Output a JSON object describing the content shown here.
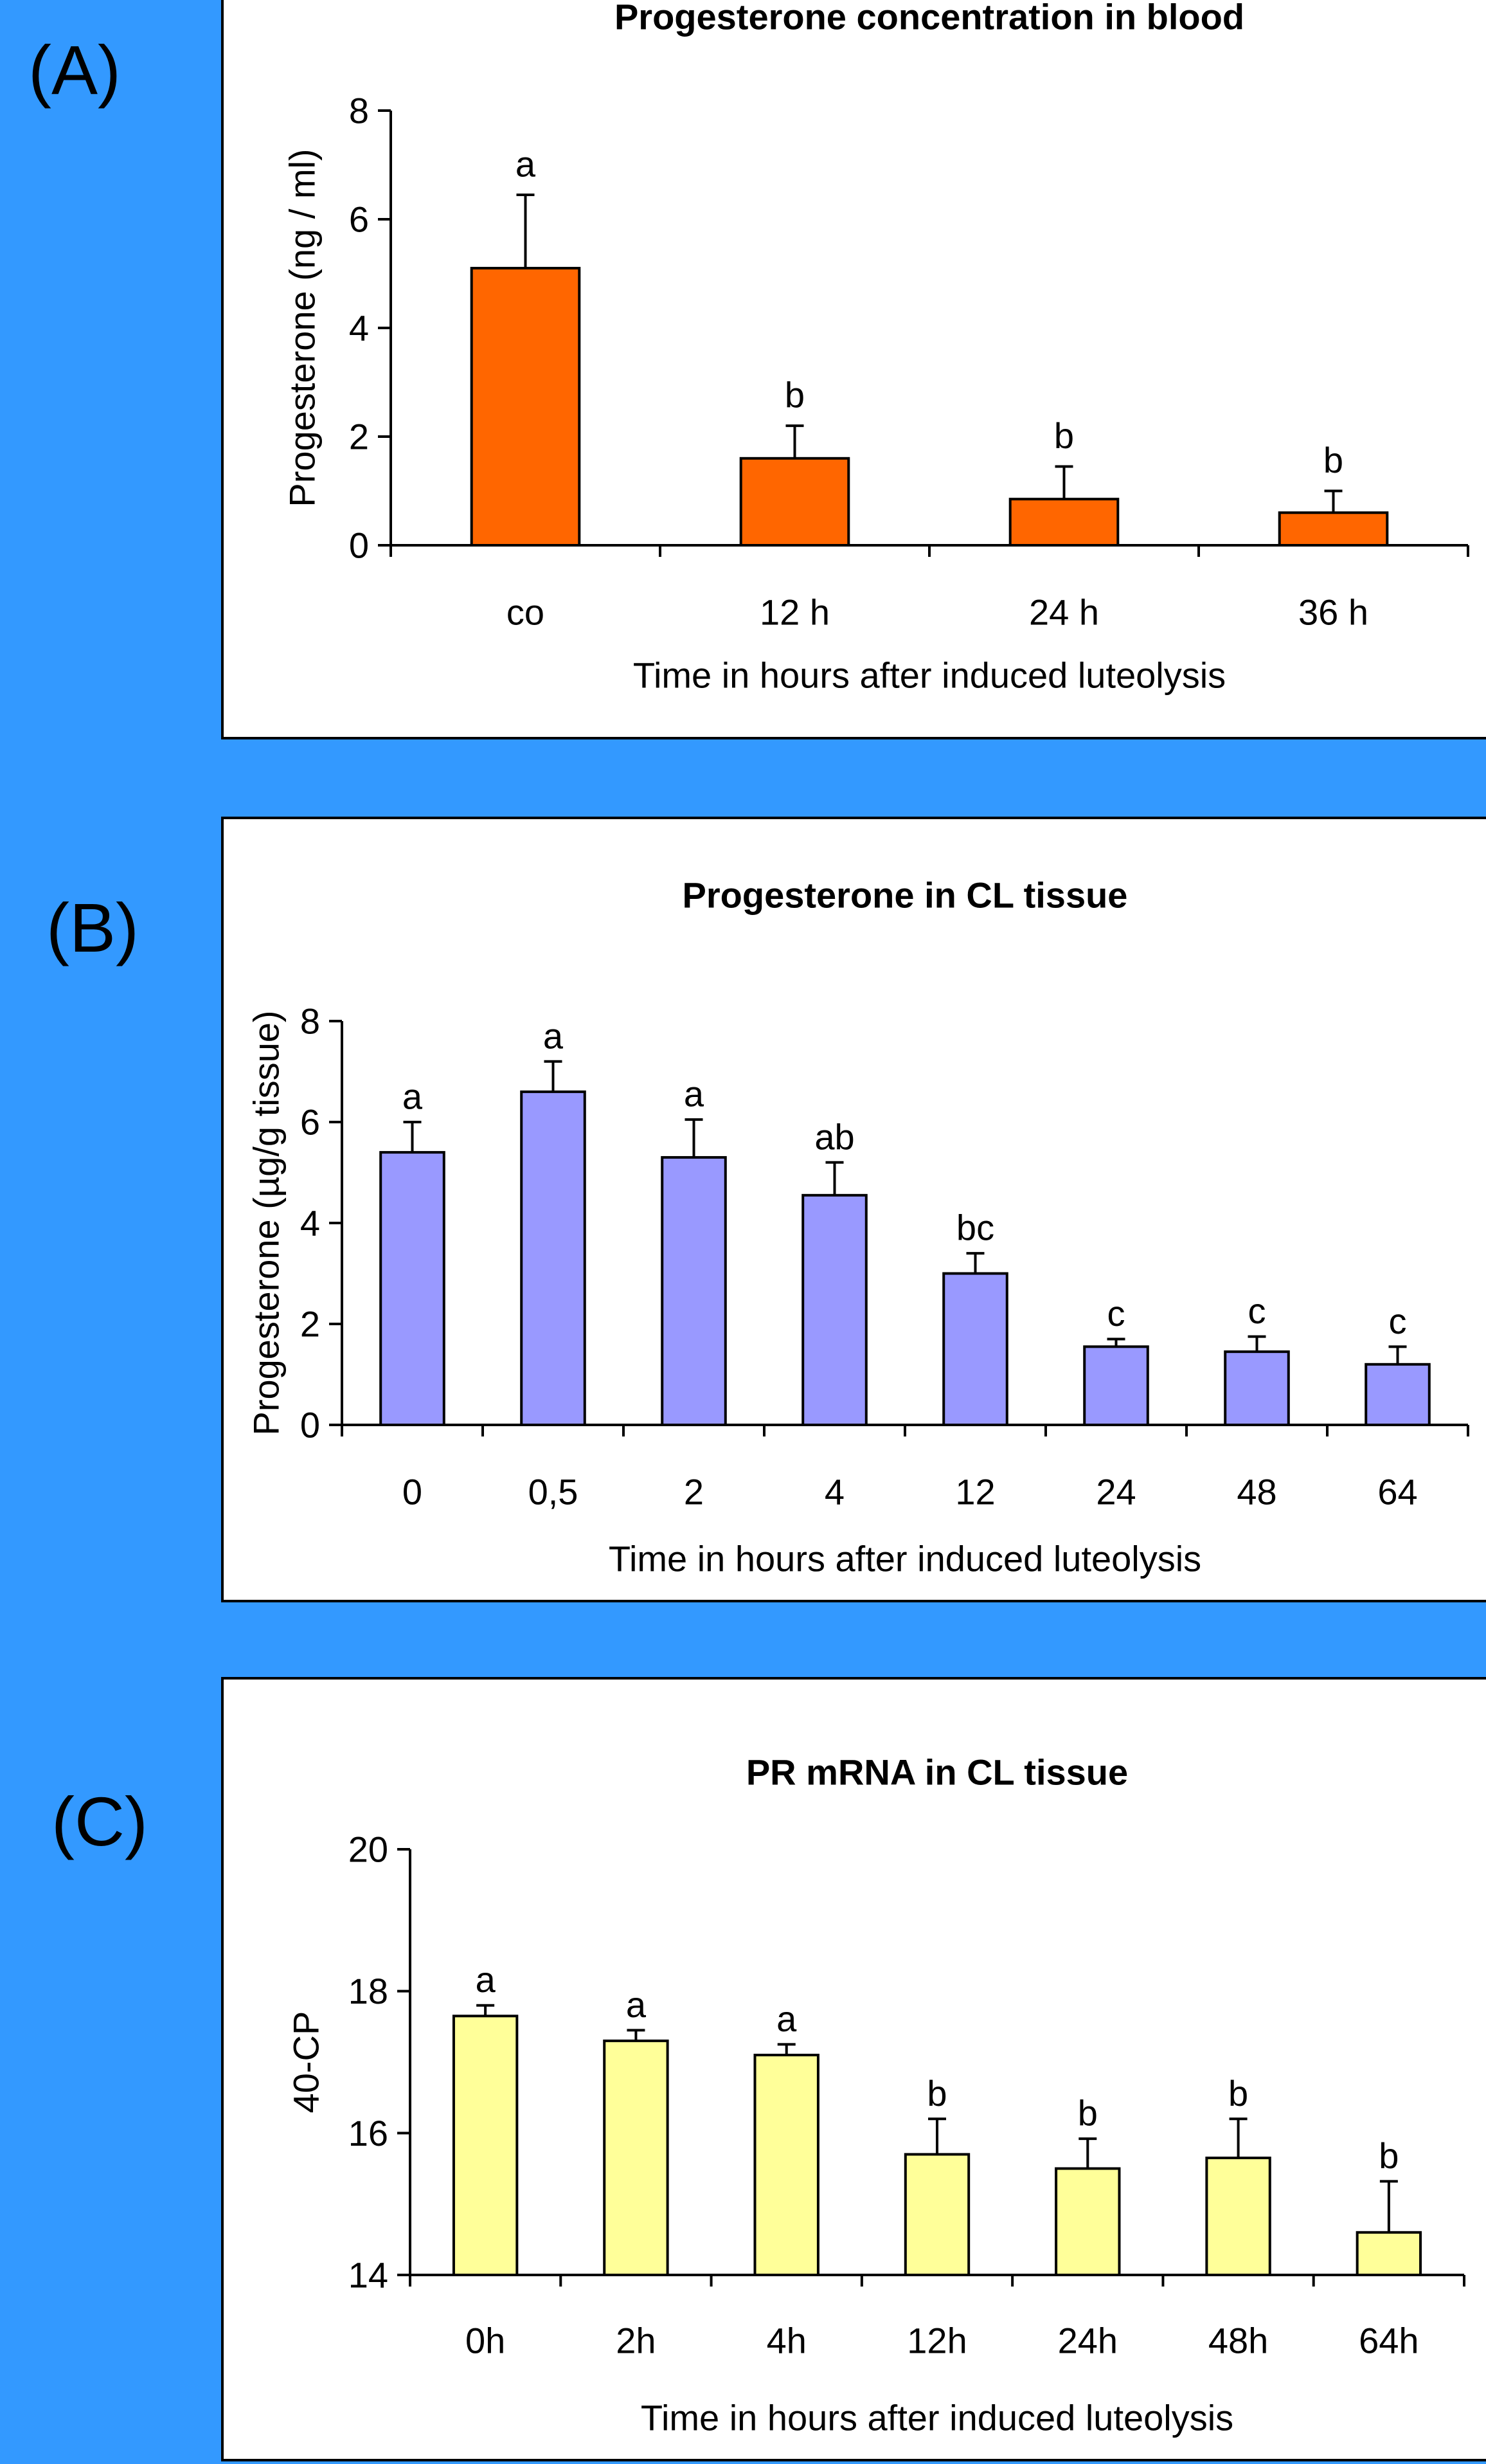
{
  "panels": [
    {
      "label": "(A)"
    },
    {
      "label": "(B)"
    },
    {
      "label": "(C)"
    }
  ],
  "chart_data": [
    {
      "type": "bar",
      "title": "Progesterone concentration in blood",
      "xlabel": "Time in hours after induced luteolysis",
      "ylabel": "Progesterone (ng / ml)",
      "categories": [
        "co",
        "12 h",
        "24 h",
        "36 h"
      ],
      "values": [
        5.1,
        1.6,
        0.85,
        0.6
      ],
      "errors": [
        1.35,
        0.6,
        0.6,
        0.4
      ],
      "significance": [
        "a",
        "b",
        "b",
        "b"
      ],
      "ylim": [
        0,
        8
      ],
      "yticks": [
        0,
        2,
        4,
        6,
        8
      ],
      "color": "#ff6600"
    },
    {
      "type": "bar",
      "title": "Progesterone in CL tissue",
      "xlabel": "Time in hours after induced luteolysis",
      "ylabel": "Progesterone (µg/g tissue)",
      "categories": [
        "0",
        "0,5",
        "2",
        "4",
        "12",
        "24",
        "48",
        "64"
      ],
      "values": [
        5.4,
        6.6,
        5.3,
        4.55,
        3.0,
        1.55,
        1.45,
        1.2
      ],
      "errors": [
        0.6,
        0.6,
        0.75,
        0.65,
        0.4,
        0.15,
        0.3,
        0.35
      ],
      "significance": [
        "a",
        "a",
        "a",
        "ab",
        "bc",
        "c",
        "c",
        "c"
      ],
      "ylim": [
        0,
        8
      ],
      "yticks": [
        0,
        2,
        4,
        6,
        8
      ],
      "color": "#9999ff"
    },
    {
      "type": "bar",
      "title": "PR mRNA in CL tissue",
      "xlabel": "Time in hours after induced luteolysis",
      "ylabel": "40-CP",
      "categories": [
        "0h",
        "2h",
        "4h",
        "12h",
        "24h",
        "48h",
        "64h"
      ],
      "values": [
        17.65,
        17.3,
        17.1,
        15.7,
        15.5,
        15.65,
        14.6
      ],
      "errors": [
        0.15,
        0.15,
        0.15,
        0.5,
        0.42,
        0.55,
        0.72
      ],
      "significance": [
        "a",
        "a",
        "a",
        "b",
        "b",
        "b",
        "b"
      ],
      "ylim": [
        14,
        20
      ],
      "yticks": [
        14,
        16,
        18,
        20
      ],
      "color": "#ffff99"
    }
  ]
}
